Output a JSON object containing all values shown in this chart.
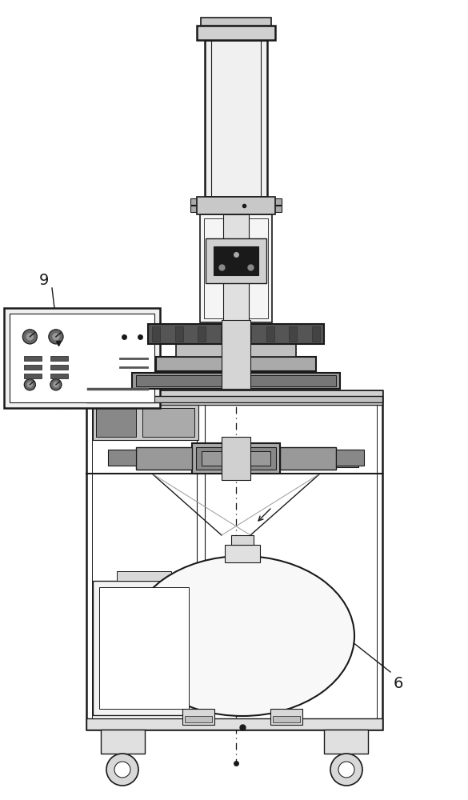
{
  "bg_color": "#ffffff",
  "line_color": "#1a1a1a",
  "gray_color": "#999999",
  "dark_gray": "#555555",
  "label_9": "9",
  "label_6": "6",
  "fig_width": 5.85,
  "fig_height": 10.0,
  "dpi": 100
}
